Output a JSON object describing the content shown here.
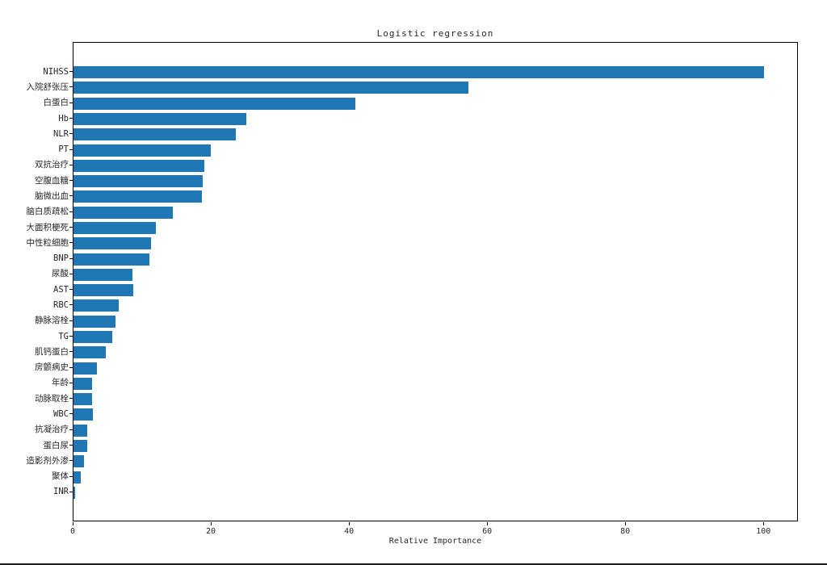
{
  "page": {
    "background": "#ffffff"
  },
  "chart_data": {
    "type": "bar",
    "orientation": "horizontal",
    "title": "Logistic regression",
    "xlabel": "Relative Importance",
    "ylabel": "",
    "legend": null,
    "grid": false,
    "bar_color": "#1f77b4",
    "axis_color": "#000000",
    "text_color": "#262626",
    "xlim": [
      0,
      105
    ],
    "xticks": [
      0,
      20,
      40,
      60,
      80,
      100
    ],
    "categories_order": "top-to-bottom",
    "categories": [
      "NIHSS",
      "入院舒张压",
      "白蛋白",
      "Hb",
      "NLR",
      "PT",
      "双抗治疗",
      "空腹血糖",
      "脑微出血",
      "脑白质疏松",
      "大面积梗死",
      "中性粒细胞",
      "BNP",
      "尿酸",
      "AST",
      "RBC",
      "静脉溶栓",
      "TG",
      "肌钙蛋白",
      "房颤病史",
      "年龄",
      "动脉取栓",
      "WBC",
      "抗凝治疗",
      "蛋白尿",
      "造影剂外渗",
      "聚体",
      "INR"
    ],
    "values": [
      100,
      57.2,
      40.8,
      25.0,
      23.5,
      19.9,
      19.0,
      18.7,
      18.6,
      14.4,
      11.9,
      11.2,
      11.0,
      8.5,
      8.6,
      6.5,
      6.1,
      5.6,
      4.7,
      3.4,
      2.7,
      2.7,
      2.8,
      2.0,
      2.0,
      1.5,
      1.0,
      0.25
    ]
  }
}
